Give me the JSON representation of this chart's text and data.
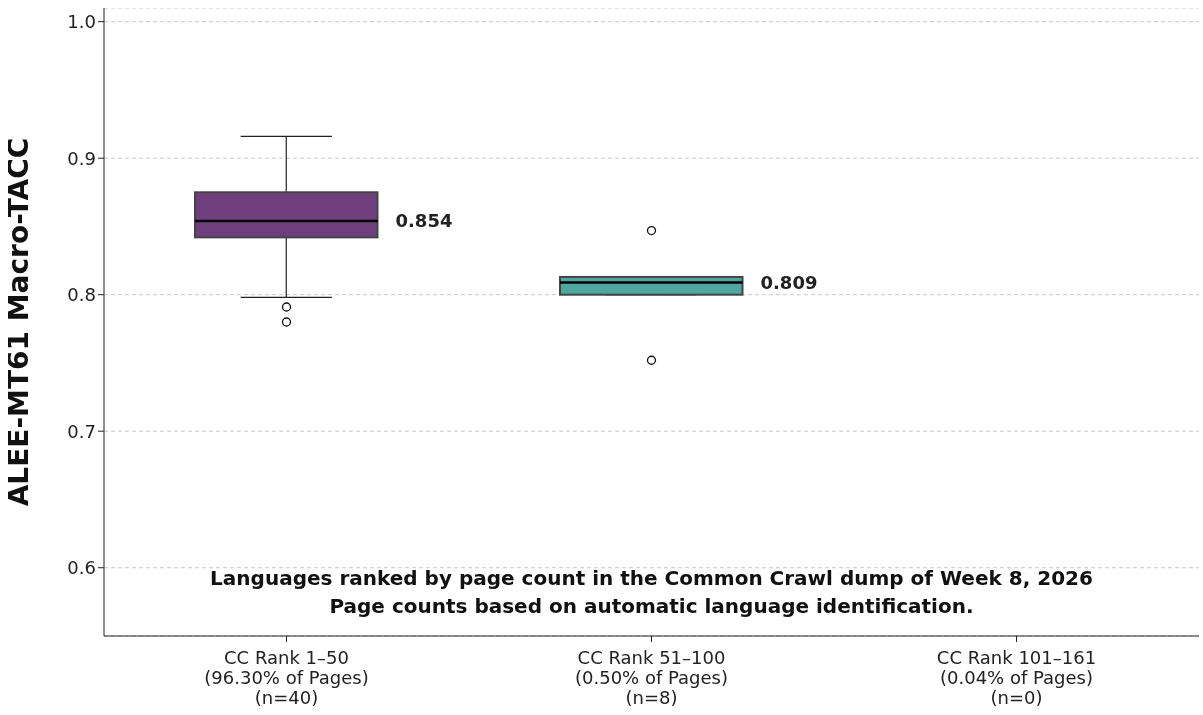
{
  "chart_data": {
    "type": "box",
    "ylabel": "ALEE-MT61 Macro-TACC",
    "categories": [
      "CC Rank 1–50\n(96.30% of Pages)\n(n=40)",
      "CC Rank 51–100\n(0.50% of Pages)\n(n=8)",
      "CC Rank 101–161\n(0.04% of Pages)\n(n=0)"
    ],
    "boxes": [
      {
        "low": 0.798,
        "q1": 0.842,
        "median": 0.854,
        "q3": 0.875,
        "high": 0.916,
        "outliers": [
          0.791,
          0.78
        ]
      },
      {
        "low": 0.8,
        "q1": 0.8,
        "median": 0.809,
        "q3": 0.813,
        "high": 0.813,
        "outliers": [
          0.847,
          0.752
        ]
      },
      null
    ],
    "colors": [
      "#6f3f7d",
      "#4fa8a0",
      null
    ],
    "ylim": [
      0.55,
      1.01
    ],
    "yticks": [
      {
        "value": 0.6,
        "label": "0.6"
      },
      {
        "value": 0.7,
        "label": "0.7"
      },
      {
        "value": 0.8,
        "label": "0.8"
      },
      {
        "value": 0.9,
        "label": "0.9"
      },
      {
        "value": 1.0,
        "label": "1.0"
      }
    ],
    "grid": "y",
    "annotations": [
      "0.854",
      "0.809",
      "Languages ranked by page count in the Common Crawl dump of Week 8, 2026",
      "Page counts based on automatic language identification."
    ]
  }
}
